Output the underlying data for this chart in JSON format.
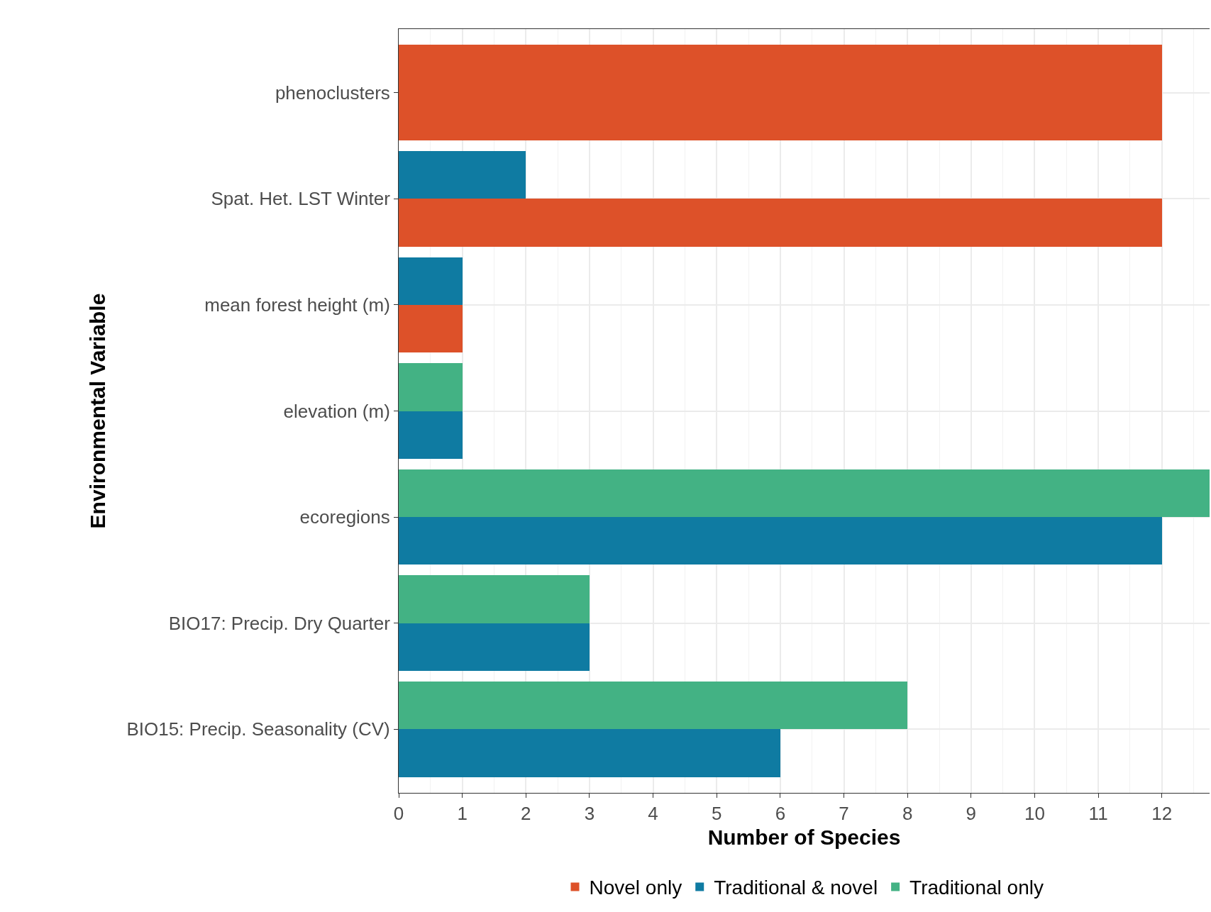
{
  "chart_data": {
    "type": "bar",
    "orientation": "horizontal",
    "xlabel": "Number of Species",
    "ylabel": "Environmental Variable",
    "categories": [
      "phenoclusters",
      "Spat. Het. LST Winter",
      "mean forest height (m)",
      "elevation (m)",
      "ecoregions",
      "BIO17: Precip. Dry Quarter",
      "BIO15: Precip. Seasonality (CV)"
    ],
    "series": [
      {
        "name": "Novel only",
        "color": "#dd5129",
        "values": [
          12,
          12,
          1,
          null,
          null,
          null,
          null
        ]
      },
      {
        "name": "Traditional & novel",
        "color": "#0f7ba2",
        "values": [
          null,
          2,
          1,
          1,
          12,
          3,
          6
        ]
      },
      {
        "name": "Traditional only",
        "color": "#43b284",
        "values": [
          null,
          null,
          null,
          1,
          12.75,
          3,
          8
        ]
      }
    ],
    "xlim": [
      0,
      12.75
    ],
    "xticks": [
      0,
      1,
      2,
      3,
      4,
      5,
      6,
      7,
      8,
      9,
      10,
      11,
      12
    ],
    "grid": true,
    "legend": "bottom"
  }
}
